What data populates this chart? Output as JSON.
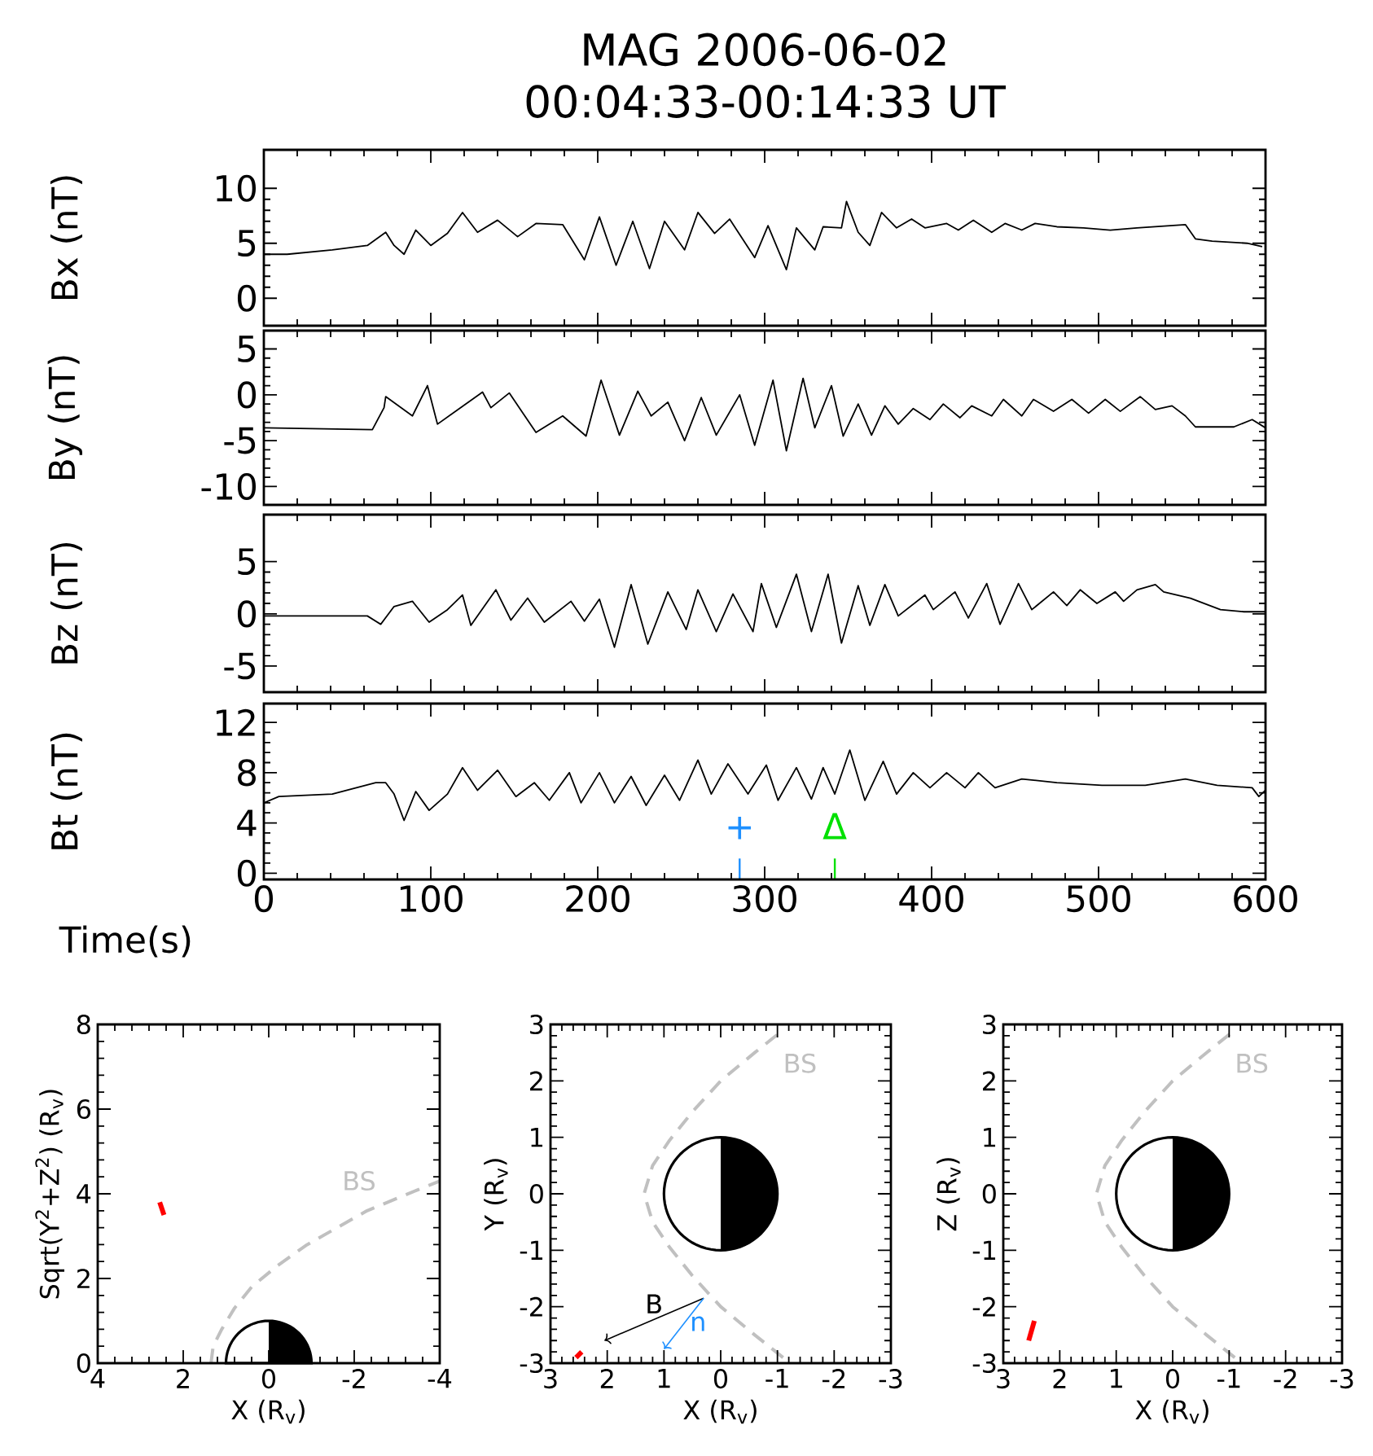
{
  "chart_data": [
    {
      "type": "line",
      "title": "MAG 2006-06-02",
      "subtitle": "00:04:33-00:14:33 UT",
      "ylabel": "Bx (nT)",
      "xlim": [
        0,
        600
      ],
      "xticks": [
        0,
        100,
        200,
        300,
        400,
        500,
        600
      ],
      "ylim": [
        -2.5,
        13.5
      ],
      "yticks": [
        0,
        5,
        10
      ],
      "tick_labels": "y",
      "x": [
        0,
        14,
        41,
        62,
        73,
        78,
        84,
        91,
        100,
        110,
        119,
        128,
        140,
        152,
        163,
        179,
        192,
        201,
        211,
        221,
        231,
        240,
        252,
        260,
        270,
        279,
        294,
        302,
        313,
        319,
        330,
        335,
        346,
        349,
        356,
        363,
        370,
        379,
        388,
        396,
        409,
        416,
        425,
        436,
        444,
        454,
        462,
        475,
        491,
        507,
        523,
        552,
        558,
        568,
        589,
        598
      ],
      "series": [
        {
          "color": "#000000",
          "values": [
            4.0,
            4.0,
            4.4,
            4.8,
            6.0,
            4.8,
            4.0,
            6.2,
            4.8,
            5.9,
            7.8,
            6.0,
            7.1,
            5.6,
            6.8,
            6.7,
            3.5,
            7.4,
            3.0,
            7.0,
            2.7,
            7.0,
            4.4,
            7.8,
            5.9,
            7.2,
            3.7,
            6.6,
            2.6,
            6.4,
            4.4,
            6.5,
            6.4,
            8.8,
            6.0,
            4.8,
            7.8,
            6.4,
            7.2,
            6.4,
            6.8,
            6.2,
            7.1,
            6.0,
            6.8,
            6.2,
            6.8,
            6.5,
            6.4,
            6.2,
            6.4,
            6.7,
            5.4,
            5.2,
            5.0,
            4.7
          ]
        }
      ]
    },
    {
      "type": "line",
      "ylabel": "By (nT)",
      "xlim": [
        0,
        600
      ],
      "xticks": [
        0,
        100,
        200,
        300,
        400,
        500,
        600
      ],
      "ylim": [
        -12,
        7
      ],
      "yticks": [
        -10,
        -5,
        0,
        5
      ],
      "tick_labels": "y",
      "x": [
        0,
        65,
        72,
        73,
        89,
        98,
        104,
        131,
        136,
        147,
        163,
        179,
        193,
        202,
        213,
        224,
        232,
        242,
        252,
        262,
        271,
        285,
        294,
        305,
        313,
        323,
        330,
        340,
        347,
        356,
        364,
        372,
        380,
        389,
        399,
        407,
        417,
        424,
        436,
        443,
        454,
        461,
        473,
        484,
        494,
        504,
        513,
        525,
        534,
        544,
        552,
        558,
        581,
        592,
        600
      ],
      "series": [
        {
          "color": "#000000",
          "values": [
            -3.6,
            -3.8,
            -1.4,
            -0.2,
            -2.3,
            1.0,
            -3.2,
            0.3,
            -1.4,
            0.2,
            -4.1,
            -2.3,
            -4.5,
            1.6,
            -4.4,
            0.4,
            -2.3,
            -0.8,
            -5.0,
            -0.3,
            -4.4,
            0.0,
            -5.5,
            1.6,
            -6.1,
            1.8,
            -3.6,
            1.0,
            -4.5,
            -1.0,
            -4.4,
            -1.2,
            -3.2,
            -1.5,
            -2.7,
            -1.0,
            -2.5,
            -1.2,
            -2.3,
            -0.5,
            -2.3,
            -0.5,
            -1.8,
            -0.5,
            -2.0,
            -0.5,
            -1.8,
            -0.2,
            -1.6,
            -1.2,
            -2.3,
            -3.5,
            -3.5,
            -2.7,
            -3.6
          ]
        }
      ]
    },
    {
      "type": "line",
      "ylabel": "Bz (nT)",
      "xlim": [
        0,
        600
      ],
      "xticks": [
        0,
        100,
        200,
        300,
        400,
        500,
        600
      ],
      "ylim": [
        -7.5,
        9.5
      ],
      "yticks": [
        -5,
        0,
        5
      ],
      "tick_labels": "y",
      "x": [
        0,
        62,
        70,
        78,
        89,
        99,
        110,
        119,
        124,
        139,
        148,
        158,
        168,
        184,
        192,
        201,
        210,
        220,
        230,
        242,
        253,
        260,
        271,
        281,
        293,
        298,
        307,
        319,
        328,
        338,
        346,
        356,
        363,
        372,
        380,
        396,
        401,
        414,
        422,
        433,
        441,
        452,
        460,
        473,
        481,
        489,
        499,
        510,
        515,
        523,
        534,
        539,
        555,
        573,
        587,
        600
      ],
      "series": [
        {
          "color": "#000000",
          "values": [
            -0.2,
            -0.2,
            -1.0,
            0.7,
            1.2,
            -0.8,
            0.4,
            1.8,
            -1.1,
            2.3,
            -0.6,
            1.5,
            -0.8,
            1.2,
            -0.7,
            1.4,
            -3.2,
            2.8,
            -2.9,
            2.1,
            -1.5,
            2.3,
            -1.7,
            1.9,
            -1.7,
            2.9,
            -1.3,
            3.8,
            -1.7,
            3.8,
            -2.8,
            2.7,
            -1.1,
            2.8,
            -0.2,
            1.8,
            0.4,
            2.1,
            -0.4,
            2.9,
            -1.0,
            2.9,
            0.4,
            2.1,
            0.8,
            2.3,
            1.0,
            2.1,
            1.2,
            2.3,
            2.8,
            2.1,
            1.5,
            0.4,
            0.2,
            0.2
          ]
        }
      ]
    },
    {
      "type": "line",
      "ylabel": "Bt (nT)",
      "xlabel": "Time(s)",
      "xlim": [
        0,
        600
      ],
      "xticks": [
        0,
        100,
        200,
        300,
        400,
        500,
        600
      ],
      "ylim": [
        -0.5,
        13.5
      ],
      "yticks": [
        0,
        4,
        8,
        12
      ],
      "x": [
        0,
        9,
        41,
        67,
        73,
        78,
        84,
        91,
        99,
        110,
        119,
        128,
        140,
        151,
        162,
        171,
        183,
        190,
        201,
        210,
        220,
        229,
        240,
        249,
        260,
        268,
        278,
        290,
        301,
        308,
        319,
        328,
        335,
        342,
        351,
        360,
        371,
        379,
        389,
        399,
        409,
        420,
        428,
        438,
        454,
        475,
        502,
        528,
        552,
        571,
        592,
        596,
        600
      ],
      "series": [
        {
          "color": "#000000",
          "values": [
            5.6,
            6.1,
            6.3,
            7.2,
            7.2,
            6.3,
            4.2,
            6.5,
            5.0,
            6.3,
            8.4,
            6.6,
            8.2,
            6.1,
            7.2,
            5.8,
            8.0,
            5.6,
            8.0,
            5.6,
            7.7,
            5.4,
            7.8,
            5.8,
            9.0,
            6.3,
            8.7,
            6.3,
            8.6,
            5.8,
            8.4,
            5.9,
            8.4,
            6.3,
            9.8,
            5.8,
            8.9,
            6.3,
            8.0,
            6.8,
            8.0,
            6.8,
            8.0,
            6.8,
            7.5,
            7.2,
            7.0,
            7.0,
            7.5,
            7.0,
            6.8,
            6.1,
            6.6
          ]
        }
      ],
      "ref_lines": [
        {
          "axis": "x",
          "value": 285,
          "label": "+",
          "color": "#1e90ff"
        },
        {
          "axis": "x",
          "value": 342,
          "label": "Δ",
          "color": "#00e000"
        }
      ]
    },
    {
      "type": "line",
      "xlabel": "X (R$_{v}$)",
      "ylabel": "Sqrt(Y$^{2}$+Z$^{2}$) (R$_{v}$)",
      "xlim": [
        4,
        -4
      ],
      "xticks": [
        4,
        2,
        0,
        -2,
        -4
      ],
      "ylim": [
        0,
        8
      ],
      "yticks": [
        0,
        2,
        4,
        6,
        8
      ],
      "series": [
        {
          "name": "BS",
          "color": "#c0c0c0",
          "line_style": "dashed",
          "x": [
            1.35,
            1.3,
            1.1,
            0.8,
            0.4,
            -0.2,
            -0.9,
            -1.6,
            -2.3,
            -2.9,
            -3.5,
            -4
          ],
          "values": [
            0,
            0.4,
            0.8,
            1.3,
            1.8,
            2.3,
            2.8,
            3.2,
            3.6,
            3.85,
            4.1,
            4.3
          ]
        },
        {
          "color": "#ff0000",
          "x": [
            2.55,
            2.45
          ],
          "values": [
            3.8,
            3.5
          ]
        }
      ]
    },
    {
      "type": "line",
      "xlabel": "X (R$_{v}$)",
      "ylabel": "Y (R$_{v}$)",
      "xlim": [
        3,
        -3
      ],
      "xticks": [
        3,
        2,
        1,
        0,
        -1,
        -2,
        -3
      ],
      "ylim": [
        -3,
        3
      ],
      "yticks": [
        -3,
        -2,
        -1,
        0,
        1,
        2,
        3
      ],
      "series": [
        {
          "name": "BS",
          "color": "#c0c0c0",
          "line_style": "dashed",
          "x": [
            -1.1,
            -0.6,
            0,
            0.5,
            0.9,
            1.2,
            1.35,
            1.2,
            0.9,
            0.5,
            0,
            -0.6,
            -1.1
          ],
          "values": [
            -2.9,
            -2.5,
            -2.0,
            -1.45,
            -0.95,
            -0.5,
            0,
            0.5,
            0.95,
            1.45,
            2.0,
            2.5,
            2.9
          ]
        },
        {
          "color": "#ff0000",
          "x": [
            2.55,
            2.45
          ],
          "values": [
            -2.9,
            -2.8
          ]
        }
      ],
      "annotations": [
        "B",
        "n"
      ]
    },
    {
      "type": "line",
      "xlabel": "X (R$_{v}$)",
      "ylabel": "Z (R$_{v}$)",
      "xlim": [
        3,
        -3
      ],
      "xticks": [
        3,
        2,
        1,
        0,
        -1,
        -2,
        -3
      ],
      "ylim": [
        -3,
        3
      ],
      "yticks": [
        -3,
        -2,
        -1,
        0,
        1,
        2,
        3
      ],
      "series": [
        {
          "name": "BS",
          "color": "#c0c0c0",
          "line_style": "dashed",
          "x": [
            -1.1,
            -0.6,
            0,
            0.5,
            0.9,
            1.2,
            1.35,
            1.2,
            0.9,
            0.5,
            0,
            -0.6,
            -1.1
          ],
          "values": [
            -2.9,
            -2.5,
            -2.0,
            -1.45,
            -0.95,
            -0.5,
            0,
            0.5,
            0.95,
            1.45,
            2.0,
            2.5,
            2.9
          ]
        },
        {
          "color": "#ff0000",
          "x": [
            2.55,
            2.45
          ],
          "values": [
            -2.6,
            -2.25
          ]
        }
      ]
    }
  ]
}
